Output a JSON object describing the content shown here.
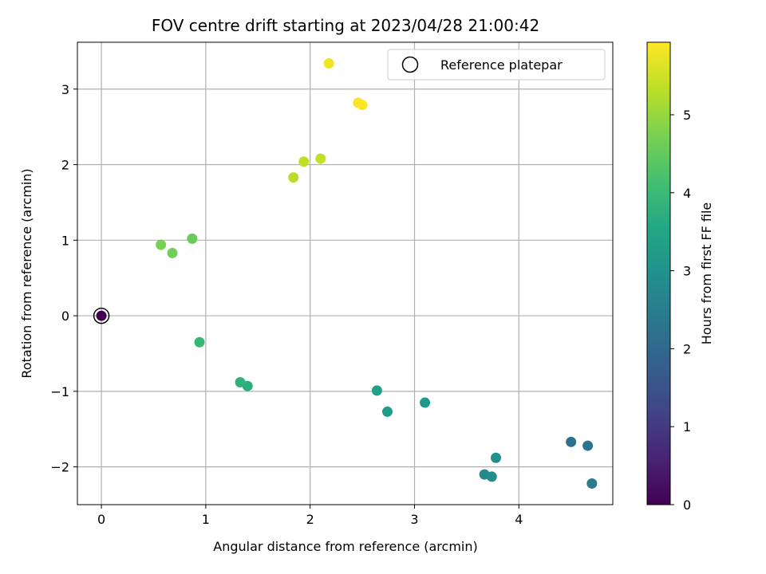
{
  "chart_data": {
    "type": "scatter",
    "title": "FOV centre drift starting at 2023/04/28 21:00:42",
    "xlabel": "Angular distance from reference (arcmin)",
    "ylabel": "Rotation from reference (arcmin)",
    "xlim": [
      -0.23,
      4.9
    ],
    "ylim": [
      -2.5,
      3.62
    ],
    "xticks": [
      0,
      1,
      2,
      3,
      4
    ],
    "yticks": [
      -2,
      -1,
      0,
      1,
      2,
      3
    ],
    "xtick_labels": [
      "0",
      "1",
      "2",
      "3",
      "4"
    ],
    "ytick_labels": [
      "−2",
      "−1",
      "0",
      "1",
      "2",
      "3"
    ],
    "grid": true,
    "legend": {
      "placement": "top-right",
      "entries": [
        "Reference platepar"
      ]
    },
    "colormap": "viridis",
    "colorbar": {
      "label": "Hours from first FF file",
      "range": [
        0,
        5.93
      ],
      "ticks": [
        0,
        1,
        2,
        3,
        4,
        5
      ],
      "tick_labels": [
        "0",
        "1",
        "2",
        "3",
        "4",
        "5"
      ]
    },
    "reference": {
      "x": 0,
      "y": 0,
      "hours": 0
    },
    "points": [
      {
        "x": 0.0,
        "y": 0.0,
        "hours": 0.0
      },
      {
        "x": 4.5,
        "y": -1.67,
        "hours": 2.15
      },
      {
        "x": 4.66,
        "y": -1.72,
        "hours": 2.3
      },
      {
        "x": 4.7,
        "y": -2.22,
        "hours": 2.45
      },
      {
        "x": 3.67,
        "y": -2.1,
        "hours": 2.75
      },
      {
        "x": 3.74,
        "y": -2.13,
        "hours": 2.85
      },
      {
        "x": 3.78,
        "y": -1.88,
        "hours": 2.95
      },
      {
        "x": 3.1,
        "y": -1.15,
        "hours": 3.15
      },
      {
        "x": 2.74,
        "y": -1.27,
        "hours": 3.25
      },
      {
        "x": 2.64,
        "y": -0.99,
        "hours": 3.35
      },
      {
        "x": 1.4,
        "y": -0.93,
        "hours": 3.7
      },
      {
        "x": 1.33,
        "y": -0.88,
        "hours": 3.8
      },
      {
        "x": 0.94,
        "y": -0.35,
        "hours": 3.95
      },
      {
        "x": 0.87,
        "y": 1.02,
        "hours": 4.55
      },
      {
        "x": 0.68,
        "y": 0.83,
        "hours": 4.65
      },
      {
        "x": 0.57,
        "y": 0.94,
        "hours": 4.7
      },
      {
        "x": 1.84,
        "y": 1.83,
        "hours": 5.3
      },
      {
        "x": 1.94,
        "y": 2.04,
        "hours": 5.35
      },
      {
        "x": 2.1,
        "y": 2.08,
        "hours": 5.4
      },
      {
        "x": 2.18,
        "y": 3.34,
        "hours": 5.8
      },
      {
        "x": 2.46,
        "y": 2.82,
        "hours": 5.88
      },
      {
        "x": 2.5,
        "y": 2.79,
        "hours": 5.93
      }
    ]
  }
}
